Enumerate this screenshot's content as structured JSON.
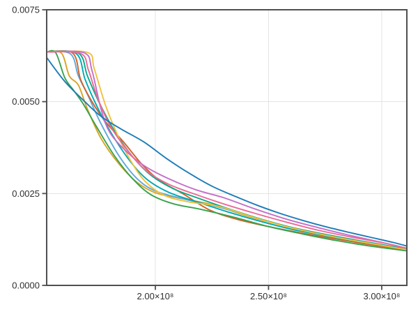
{
  "chart_data": {
    "type": "line",
    "title": "",
    "xlabel": "",
    "ylabel": "",
    "legend": "none",
    "grid": true,
    "background": "#ffffff",
    "frame_color": "#4f4f52",
    "grid_color": "#e3e3e5",
    "tick_label_color": "#2f2f32",
    "xlim": [
      152000000.0,
      311100000.0
    ],
    "ylim": [
      0.0,
      0.0075
    ],
    "xticks": {
      "values": [
        200000000.0,
        250000000.0,
        300000000.0
      ],
      "labels": [
        "2.00×10⁸",
        "2.50×10⁸",
        "3.00×10⁸"
      ]
    },
    "yticks": {
      "values": [
        0.0,
        0.0025,
        0.005,
        0.0075
      ],
      "labels": [
        "0.0000",
        "0.0025",
        "0.0050",
        "0.0075"
      ]
    },
    "series": [
      {
        "name": "series-gold",
        "color": "#D9A425",
        "points": [
          [
            152000000.0,
            0.00635
          ],
          [
            158500000.0,
            0.00632
          ],
          [
            162000000.0,
            0.0057
          ],
          [
            166000000.0,
            0.00545
          ],
          [
            170000000.0,
            0.0048
          ],
          [
            176000000.0,
            0.004
          ],
          [
            184000000.0,
            0.0033
          ],
          [
            192000000.0,
            0.0028
          ],
          [
            200000000.0,
            0.00252
          ],
          [
            210000000.0,
            0.00238
          ],
          [
            225000000.0,
            0.0022
          ],
          [
            240000000.0,
            0.0019
          ],
          [
            255000000.0,
            0.00165
          ],
          [
            270000000.0,
            0.00145
          ],
          [
            285000000.0,
            0.00126
          ],
          [
            300000000.0,
            0.0011
          ],
          [
            311100000.0,
            0.00098
          ]
        ]
      },
      {
        "name": "series-lightblue",
        "color": "#5FA8D8",
        "points": [
          [
            152000000.0,
            0.00635
          ],
          [
            162500000.0,
            0.0063
          ],
          [
            166000000.0,
            0.0057
          ],
          [
            170000000.0,
            0.0052
          ],
          [
            176000000.0,
            0.0044
          ],
          [
            184000000.0,
            0.00352
          ],
          [
            192000000.0,
            0.0029
          ],
          [
            200000000.0,
            0.00257
          ],
          [
            212000000.0,
            0.00236
          ],
          [
            228000000.0,
            0.00213
          ],
          [
            245000000.0,
            0.00183
          ],
          [
            260000000.0,
            0.00158
          ],
          [
            275000000.0,
            0.00139
          ],
          [
            290000000.0,
            0.00122
          ],
          [
            305000000.0,
            0.00106
          ],
          [
            311100000.0,
            0.001
          ]
        ]
      },
      {
        "name": "series-vermillion",
        "color": "#D2622A",
        "points": [
          [
            152000000.0,
            0.00635
          ],
          [
            163500000.0,
            0.00632
          ],
          [
            167000000.0,
            0.0056
          ],
          [
            172000000.0,
            0.005
          ],
          [
            178000000.0,
            0.00445
          ],
          [
            186000000.0,
            0.0039
          ],
          [
            194000000.0,
            0.0033
          ],
          [
            202000000.0,
            0.00285
          ],
          [
            212000000.0,
            0.0025
          ],
          [
            224000000.0,
            0.00205
          ],
          [
            236000000.0,
            0.0018
          ],
          [
            250000000.0,
            0.0016
          ],
          [
            265000000.0,
            0.00142
          ],
          [
            280000000.0,
            0.00126
          ],
          [
            295000000.0,
            0.00111
          ],
          [
            311100000.0,
            0.00097
          ]
        ]
      },
      {
        "name": "series-tealgreen",
        "color": "#0AA98A",
        "points": [
          [
            152000000.0,
            0.00635
          ],
          [
            166000000.0,
            0.00632
          ],
          [
            170000000.0,
            0.0057
          ],
          [
            175000000.0,
            0.005
          ],
          [
            182000000.0,
            0.0042
          ],
          [
            190000000.0,
            0.0035
          ],
          [
            198000000.0,
            0.003
          ],
          [
            208000000.0,
            0.00263
          ],
          [
            220000000.0,
            0.00235
          ],
          [
            234000000.0,
            0.00205
          ],
          [
            248000000.0,
            0.00178
          ],
          [
            262000000.0,
            0.00155
          ],
          [
            277000000.0,
            0.00136
          ],
          [
            292000000.0,
            0.00119
          ],
          [
            306000000.0,
            0.00104
          ],
          [
            311100000.0,
            0.00095
          ]
        ]
      },
      {
        "name": "series-teal",
        "color": "#00A9B5",
        "points": [
          [
            152000000.0,
            0.00635
          ],
          [
            165000000.0,
            0.00631
          ],
          [
            169000000.0,
            0.0056
          ],
          [
            174000000.0,
            0.0049
          ],
          [
            180000000.0,
            0.0042
          ],
          [
            188000000.0,
            0.00345
          ],
          [
            196000000.0,
            0.0029
          ],
          [
            206000000.0,
            0.00253
          ],
          [
            218000000.0,
            0.00228
          ],
          [
            232000000.0,
            0.002
          ],
          [
            246000000.0,
            0.00175
          ],
          [
            260000000.0,
            0.00153
          ],
          [
            275000000.0,
            0.00135
          ],
          [
            290000000.0,
            0.00119
          ],
          [
            305000000.0,
            0.00105
          ],
          [
            311100000.0,
            0.00096
          ]
        ]
      },
      {
        "name": "series-green",
        "color": "#37A24C",
        "points": [
          [
            152000000.0,
            0.00635
          ],
          [
            156000000.0,
            0.00633
          ],
          [
            160000000.0,
            0.00565
          ],
          [
            164000000.0,
            0.0053
          ],
          [
            168000000.0,
            0.00495
          ],
          [
            174000000.0,
            0.00432
          ],
          [
            182000000.0,
            0.00352
          ],
          [
            190000000.0,
            0.0029
          ],
          [
            198000000.0,
            0.00247
          ],
          [
            208000000.0,
            0.00222
          ],
          [
            220000000.0,
            0.00207
          ],
          [
            235000000.0,
            0.00185
          ],
          [
            250000000.0,
            0.0016
          ],
          [
            265000000.0,
            0.0014
          ],
          [
            280000000.0,
            0.00122
          ],
          [
            295000000.0,
            0.00107
          ],
          [
            311100000.0,
            0.00094
          ]
        ]
      },
      {
        "name": "series-yellow",
        "color": "#EFC23C",
        "points": [
          [
            152000000.0,
            0.00635
          ],
          [
            170000000.0,
            0.00634
          ],
          [
            173000000.0,
            0.0059
          ],
          [
            178000000.0,
            0.0049
          ],
          [
            184000000.0,
            0.004
          ],
          [
            190000000.0,
            0.0033
          ],
          [
            196000000.0,
            0.0028
          ],
          [
            204000000.0,
            0.00245
          ],
          [
            214000000.0,
            0.00228
          ],
          [
            228000000.0,
            0.00215
          ],
          [
            242000000.0,
            0.00188
          ],
          [
            256000000.0,
            0.00163
          ],
          [
            270000000.0,
            0.00143
          ],
          [
            285000000.0,
            0.00125
          ],
          [
            300000000.0,
            0.00109
          ],
          [
            311100000.0,
            0.00097
          ]
        ]
      },
      {
        "name": "series-magenta",
        "color": "#C26FC9",
        "points": [
          [
            152000000.0,
            0.00635
          ],
          [
            168500000.0,
            0.00633
          ],
          [
            172000000.0,
            0.00585
          ],
          [
            176000000.0,
            0.0048
          ],
          [
            180000000.0,
            0.00415
          ],
          [
            188000000.0,
            0.0036
          ],
          [
            196000000.0,
            0.00322
          ],
          [
            206000000.0,
            0.0029
          ],
          [
            218000000.0,
            0.0026
          ],
          [
            230000000.0,
            0.00239
          ],
          [
            244000000.0,
            0.00208
          ],
          [
            258000000.0,
            0.0018
          ],
          [
            272000000.0,
            0.00157
          ],
          [
            286000000.0,
            0.00136
          ],
          [
            300000000.0,
            0.00117
          ],
          [
            311100000.0,
            0.00101
          ]
        ]
      },
      {
        "name": "series-pink",
        "color": "#EC6A97",
        "points": [
          [
            152000000.0,
            0.00635
          ],
          [
            167000000.0,
            0.00631
          ],
          [
            170500000.0,
            0.00585
          ],
          [
            174500000.0,
            0.0051
          ],
          [
            180000000.0,
            0.00435
          ],
          [
            188000000.0,
            0.00365
          ],
          [
            196000000.0,
            0.00312
          ],
          [
            206000000.0,
            0.00275
          ],
          [
            218000000.0,
            0.00247
          ],
          [
            230000000.0,
            0.00222
          ],
          [
            244000000.0,
            0.00196
          ],
          [
            258000000.0,
            0.00172
          ],
          [
            272000000.0,
            0.0015
          ],
          [
            287000000.0,
            0.00131
          ],
          [
            302000000.0,
            0.00114
          ],
          [
            311100000.0,
            0.00101
          ]
        ]
      },
      {
        "name": "series-blue",
        "color": "#1C7CB8",
        "points": [
          [
            152000000.0,
            0.0062
          ],
          [
            160000000.0,
            0.00555
          ],
          [
            168000000.0,
            0.00505
          ],
          [
            176000000.0,
            0.0046
          ],
          [
            185000000.0,
            0.00425
          ],
          [
            195000000.0,
            0.0039
          ],
          [
            205000000.0,
            0.00345
          ],
          [
            215000000.0,
            0.00305
          ],
          [
            225000000.0,
            0.0027
          ],
          [
            235000000.0,
            0.00243
          ],
          [
            245000000.0,
            0.00218
          ],
          [
            255000000.0,
            0.00196
          ],
          [
            265000000.0,
            0.00177
          ],
          [
            275000000.0,
            0.0016
          ],
          [
            285000000.0,
            0.00145
          ],
          [
            295000000.0,
            0.00131
          ],
          [
            305000000.0,
            0.00117
          ],
          [
            311100000.0,
            0.00107
          ]
        ]
      }
    ]
  }
}
